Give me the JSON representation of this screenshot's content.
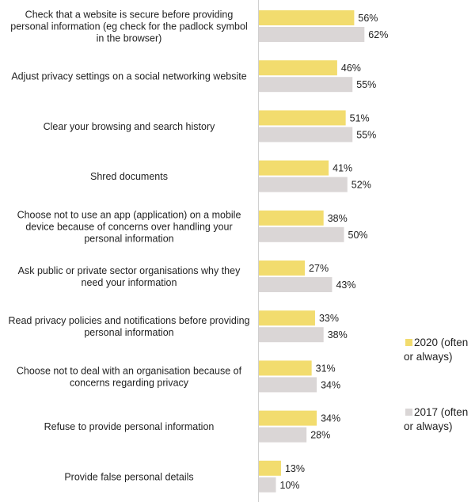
{
  "chart_data": {
    "type": "bar",
    "orientation": "horizontal",
    "categories": [
      [
        "Check that a website is secure before providing",
        "personal information (eg check for the padlock symbol",
        "in the browser)"
      ],
      [
        "Adjust privacy settings on a social networking website"
      ],
      [
        "Clear your browsing and search history"
      ],
      [
        "Shred documents"
      ],
      [
        "Choose not to use an app (application) on a mobile",
        "device because of concerns over handling your",
        "personal information"
      ],
      [
        "Ask public or private sector organisations why they",
        "need your information"
      ],
      [
        "Read privacy policies and notifications before providing",
        "personal information"
      ],
      [
        "Choose not to deal with an organisation because of",
        "concerns regarding privacy"
      ],
      [
        "Refuse to provide personal information"
      ],
      [
        "Provide false personal details"
      ]
    ],
    "series": [
      {
        "name": "2020 (often or always)",
        "legend_lines": [
          "2020 (often",
          "or always)"
        ],
        "color": "#F2DC6E",
        "values": [
          56,
          46,
          51,
          41,
          38,
          27,
          33,
          31,
          34,
          13
        ],
        "labels": [
          "56%",
          "46%",
          "51%",
          "41%",
          "38%",
          "27%",
          "33%",
          "31%",
          "34%",
          "13%"
        ]
      },
      {
        "name": "2017  (often or always)",
        "legend_lines": [
          "2017  (often",
          "or always)"
        ],
        "color": "#DAD6D6",
        "values": [
          62,
          55,
          55,
          52,
          50,
          43,
          38,
          34,
          28,
          10
        ],
        "labels": [
          "62%",
          "55%",
          "55%",
          "52%",
          "50%",
          "43%",
          "38%",
          "34%",
          "28%",
          "10%"
        ]
      }
    ],
    "xlim": [
      0,
      100
    ],
    "legend_position": "right",
    "grid": false
  }
}
